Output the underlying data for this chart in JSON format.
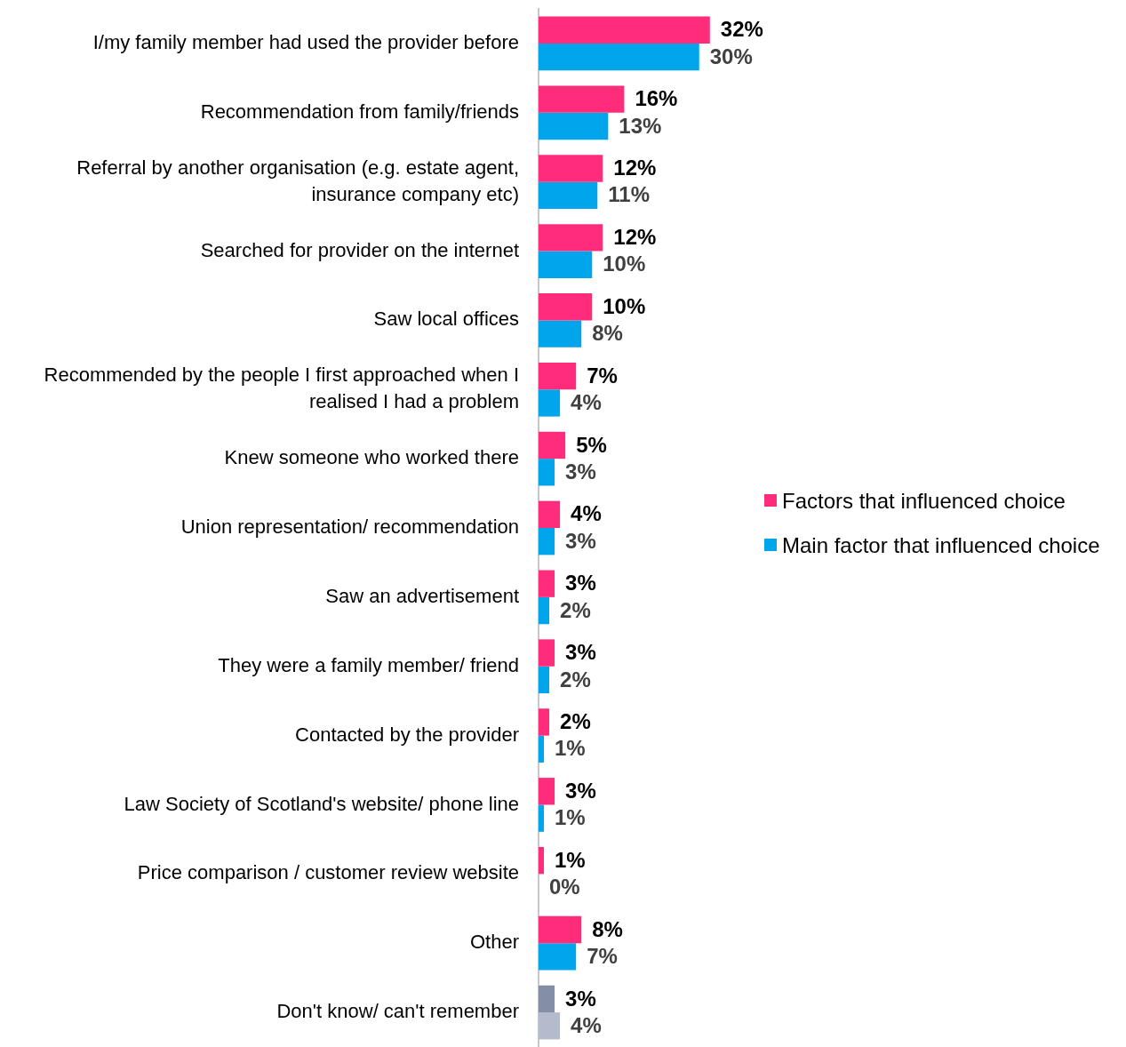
{
  "chart_data": {
    "type": "bar",
    "orientation": "horizontal",
    "legend": "right",
    "categories": [
      "I/my family member had used the provider before",
      "Recommendation from family/friends",
      "Referral by another organisation (e.g. estate agent, insurance company etc)",
      "Searched for provider on the internet",
      "Saw local offices",
      "Recommended by the people I first approached when I realised I had a problem",
      "Knew someone who worked there",
      "Union representation/ recommendation",
      "Saw an advertisement",
      "They were a family member/ friend",
      "Contacted by the provider",
      "Law Society of Scotland's website/ phone line",
      "Price comparison / customer review website",
      "Other",
      "Don't know/ can't remember"
    ],
    "series": [
      {
        "name": "Factors that influenced choice",
        "color": "#fe2c7b",
        "colors": [
          "#fe2c7b",
          "#fe2c7b",
          "#fe2c7b",
          "#fe2c7b",
          "#fe2c7b",
          "#fe2c7b",
          "#fe2c7b",
          "#fe2c7b",
          "#fe2c7b",
          "#fe2c7b",
          "#fe2c7b",
          "#fe2c7b",
          "#fe2c7b",
          "#fe2c7b",
          "#848ea5"
        ],
        "values": [
          32,
          16,
          12,
          12,
          10,
          7,
          5,
          4,
          3,
          3,
          2,
          3,
          1,
          8,
          3
        ],
        "value_labels": [
          "32%",
          "16%",
          "12%",
          "12%",
          "10%",
          "7%",
          "5%",
          "4%",
          "3%",
          "3%",
          "2%",
          "3%",
          "1%",
          "8%",
          "3%"
        ]
      },
      {
        "name": "Main factor that influenced choice",
        "color": "#00a5ec",
        "colors": [
          "#00a5ec",
          "#00a5ec",
          "#00a5ec",
          "#00a5ec",
          "#00a5ec",
          "#00a5ec",
          "#00a5ec",
          "#00a5ec",
          "#00a5ec",
          "#00a5ec",
          "#00a5ec",
          "#00a5ec",
          "#00a5ec",
          "#00a5ec",
          "#b3bbcc"
        ],
        "values": [
          30,
          13,
          11,
          10,
          8,
          4,
          3,
          3,
          2,
          2,
          1,
          1,
          0,
          7,
          4
        ],
        "value_labels": [
          "30%",
          "13%",
          "11%",
          "10%",
          "8%",
          "4%",
          "3%",
          "3%",
          "2%",
          "2%",
          "1%",
          "1%",
          "0%",
          "7%",
          "4%"
        ]
      }
    ]
  }
}
